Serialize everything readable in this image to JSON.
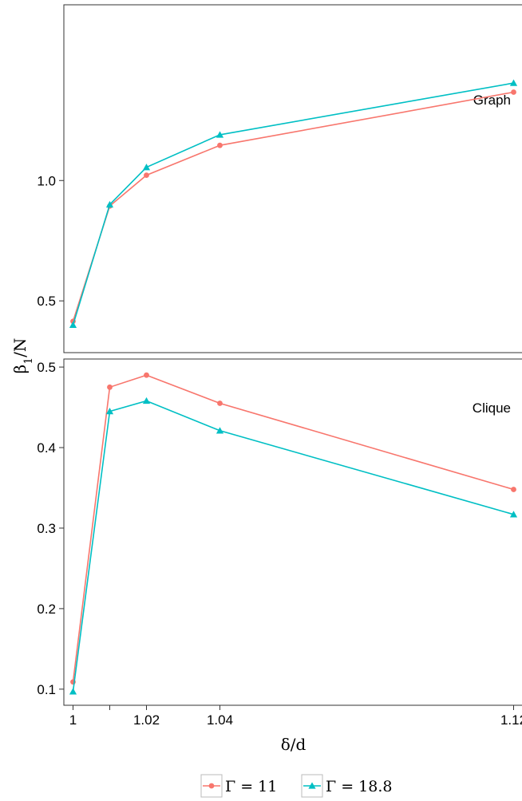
{
  "chart_data": {
    "type": "line",
    "xlabel": "δ/d",
    "ylabel": "β1/N",
    "ylabel_main": "β",
    "ylabel_sub": "1",
    "ylabel_tail": "/N",
    "x_ticks": [
      1,
      1.01,
      1.02,
      1.04,
      1.12
    ],
    "x_tick_labels": [
      "1",
      "",
      "1.02",
      "1.04",
      "1.12"
    ],
    "xlim": [
      0.9975,
      1.1225
    ],
    "legend": {
      "position": "bottom",
      "entries": [
        {
          "series": 0,
          "label": "Γ = 11"
        },
        {
          "series": 1,
          "label": "Γ = 18.8"
        }
      ]
    },
    "colors": [
      "#F8766D",
      "#00BFC4"
    ],
    "panels": [
      {
        "label": "Graph",
        "ylim": [
          0.285,
          1.73
        ],
        "y_ticks": [
          0.5,
          1.0
        ],
        "y_tick_labels": [
          "0.5",
          "1.0"
        ],
        "series": [
          {
            "name": "Γ = 11",
            "marker": "circle",
            "x": [
              1,
              1.01,
              1.02,
              1.04,
              1.12
            ],
            "y": [
              0.415,
              0.894,
              1.022,
              1.146,
              1.367
            ]
          },
          {
            "name": "Γ = 18.8",
            "marker": "triangle",
            "x": [
              1,
              1.01,
              1.02,
              1.04,
              1.12
            ],
            "y": [
              0.4,
              0.9,
              1.055,
              1.19,
              1.405
            ]
          }
        ]
      },
      {
        "label": "Clique",
        "ylim": [
          0.08,
          0.51
        ],
        "y_ticks": [
          0.1,
          0.2,
          0.3,
          0.4,
          0.5
        ],
        "y_tick_labels": [
          "0.1",
          "0.2",
          "0.3",
          "0.4",
          "0.5"
        ],
        "series": [
          {
            "name": "Γ = 11",
            "marker": "circle",
            "x": [
              1,
              1.01,
              1.02,
              1.04,
              1.12
            ],
            "y": [
              0.109,
              0.475,
              0.49,
              0.455,
              0.348
            ]
          },
          {
            "name": "Γ = 18.8",
            "marker": "triangle",
            "x": [
              1,
              1.01,
              1.02,
              1.04,
              1.12
            ],
            "y": [
              0.097,
              0.445,
              0.458,
              0.421,
              0.317
            ]
          }
        ]
      }
    ]
  }
}
